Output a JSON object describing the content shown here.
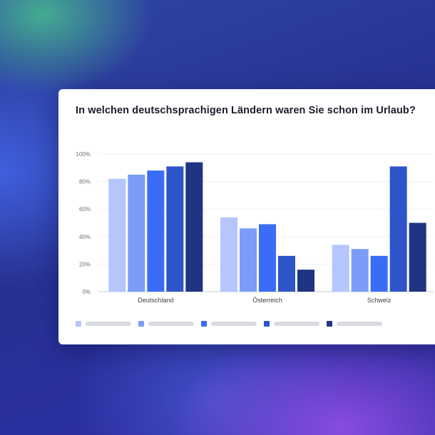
{
  "card": {
    "title": "In welchen deutschsprachigen Ländern waren Sie schon im Urlaub?"
  },
  "chart_data": {
    "type": "bar",
    "title": "In welchen deutschsprachigen Ländern waren Sie schon im Urlaub?",
    "xlabel": "",
    "ylabel": "",
    "ylim": [
      0,
      100
    ],
    "yticks": [
      "0%",
      "20%",
      "40%",
      "60%",
      "80%",
      "100%"
    ],
    "ytick_values": [
      0,
      20,
      40,
      60,
      80,
      100
    ],
    "categories": [
      "Deutschland",
      "Österreich",
      "Schweiz"
    ],
    "grid": true,
    "legend_placement": "bottom-left",
    "series": [
      {
        "color": "#b5c6fd",
        "values": [
          82,
          54,
          34
        ]
      },
      {
        "color": "#7b9df9",
        "values": [
          85,
          46,
          31
        ]
      },
      {
        "color": "#3a6cf5",
        "values": [
          88,
          49,
          26
        ]
      },
      {
        "color": "#2d55c9",
        "values": [
          91,
          26,
          91
        ]
      },
      {
        "color": "#1f3482",
        "values": [
          94,
          16,
          50
        ]
      }
    ]
  }
}
